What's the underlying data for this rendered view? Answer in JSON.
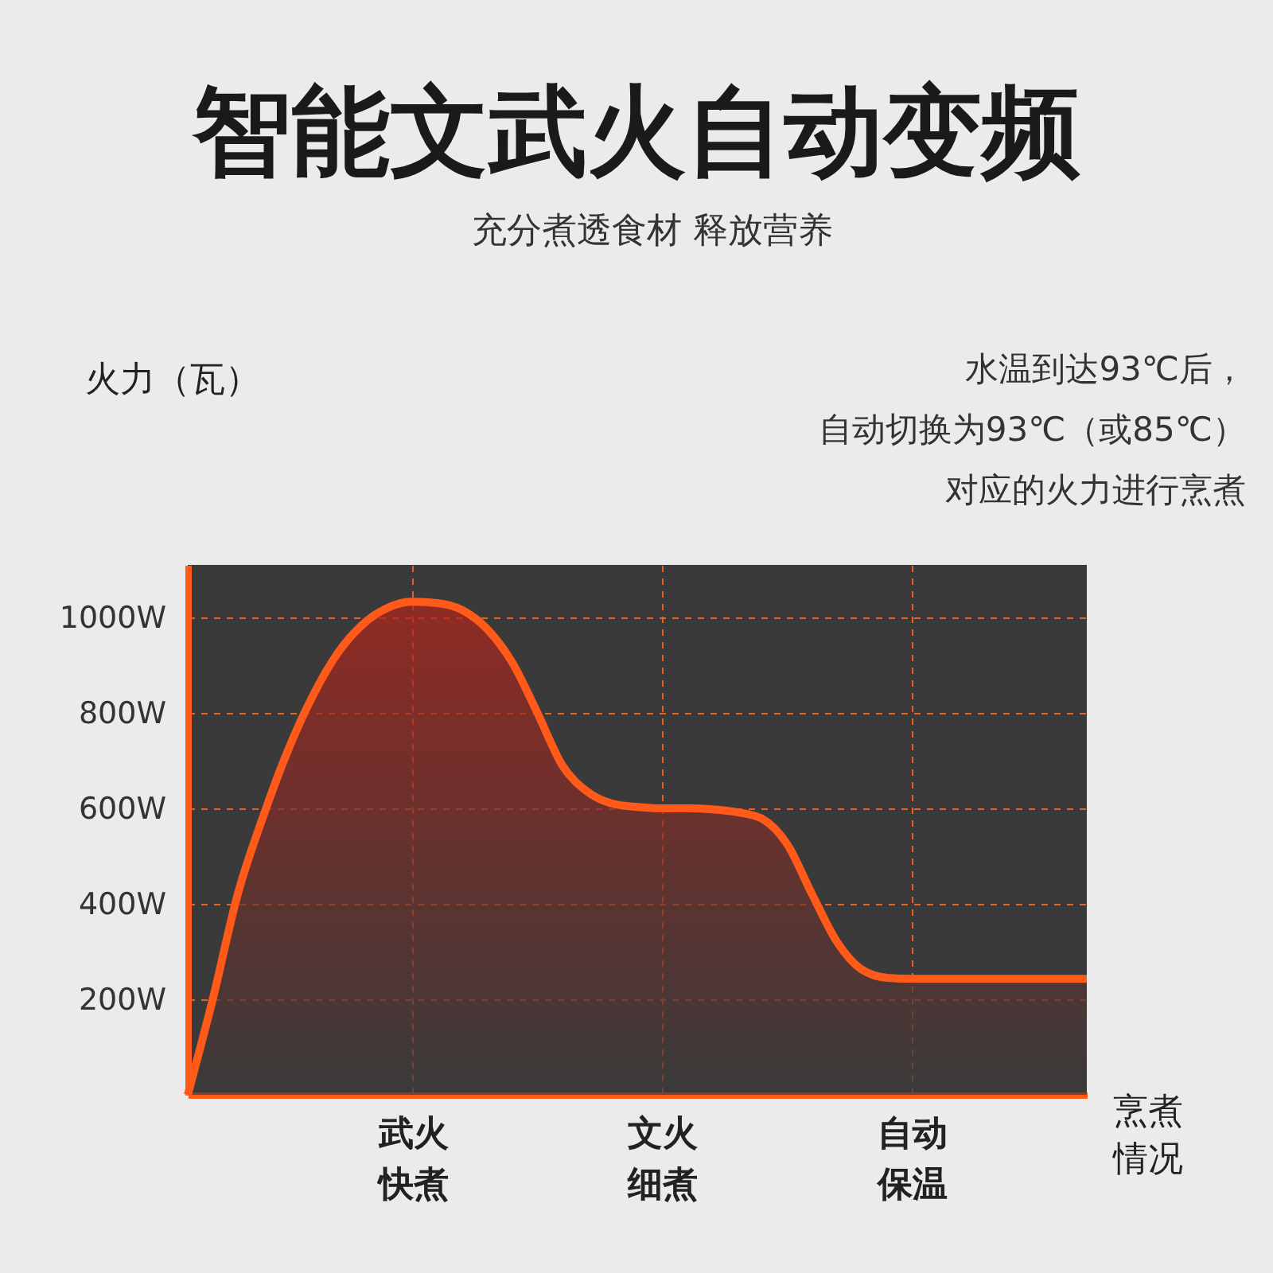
{
  "chart_data": {
    "type": "area",
    "title": "智能文武火自动变频",
    "subtitle": "充分煮透食材 释放营养",
    "xlabel": "烹煮情况",
    "ylabel": "火力（瓦）",
    "annotations": [
      "水温到达93℃后，",
      "自动切换为93℃（或85℃）",
      "对应的火力进行烹煮"
    ],
    "categories": [
      null,
      null,
      null,
      null,
      null,
      null,
      null,
      null,
      null,
      "武火快煮",
      null,
      null,
      null,
      null,
      null,
      null,
      null,
      null,
      null,
      "文火细煮",
      null,
      null,
      null,
      null,
      null,
      null,
      null,
      null,
      null,
      "自动保温",
      null,
      null,
      null,
      null,
      null,
      null,
      null
    ],
    "series": [
      {
        "color": "#ff5a1a",
        "values": [
          0,
          200,
          420,
          580,
          720,
          835,
          925,
          985,
          1020,
          1033,
          1030,
          1015,
          975,
          905,
          800,
          690,
          635,
          610,
          603,
          600,
          600,
          598,
          592,
          578,
          525,
          420,
          320,
          262,
          245,
          243,
          243,
          243,
          243,
          243,
          243,
          243,
          243
        ]
      }
    ],
    "ylim": [
      0,
      1110
    ],
    "yticks": [
      {
        "value": 200,
        "label": "200W"
      },
      {
        "value": 400,
        "label": "400W"
      },
      {
        "value": 600,
        "label": "600W"
      },
      {
        "value": 800,
        "label": "800W"
      },
      {
        "value": 1000,
        "label": "1000W"
      }
    ],
    "grid": true
  }
}
